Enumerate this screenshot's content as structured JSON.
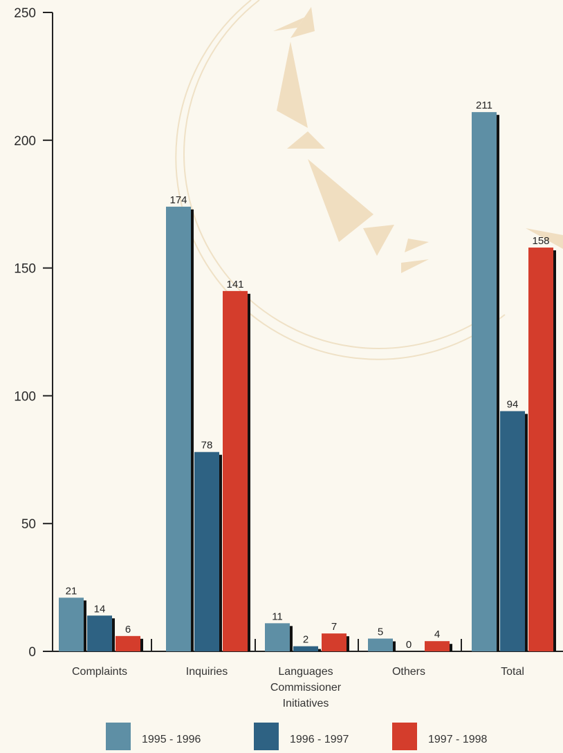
{
  "chart_data": {
    "type": "bar",
    "categories": [
      [
        "Complaints"
      ],
      [
        "Inquiries"
      ],
      [
        "Languages",
        "Commissioner",
        "Initiatives"
      ],
      [
        "Others"
      ],
      [
        "Total"
      ]
    ],
    "series": [
      {
        "name": "1995 - 1996",
        "values": [
          21,
          174,
          11,
          5,
          211
        ],
        "color": "#5e8fa5"
      },
      {
        "name": "1996 - 1997",
        "values": [
          14,
          78,
          2,
          0,
          94
        ],
        "color": "#2e6283"
      },
      {
        "name": "1997 - 1998",
        "values": [
          6,
          141,
          7,
          4,
          158
        ],
        "color": "#d43d2c"
      }
    ],
    "ylim": [
      0,
      250
    ],
    "yticks": [
      0,
      50,
      100,
      150,
      200,
      250
    ],
    "legend_position": "bottom",
    "grid": false
  }
}
